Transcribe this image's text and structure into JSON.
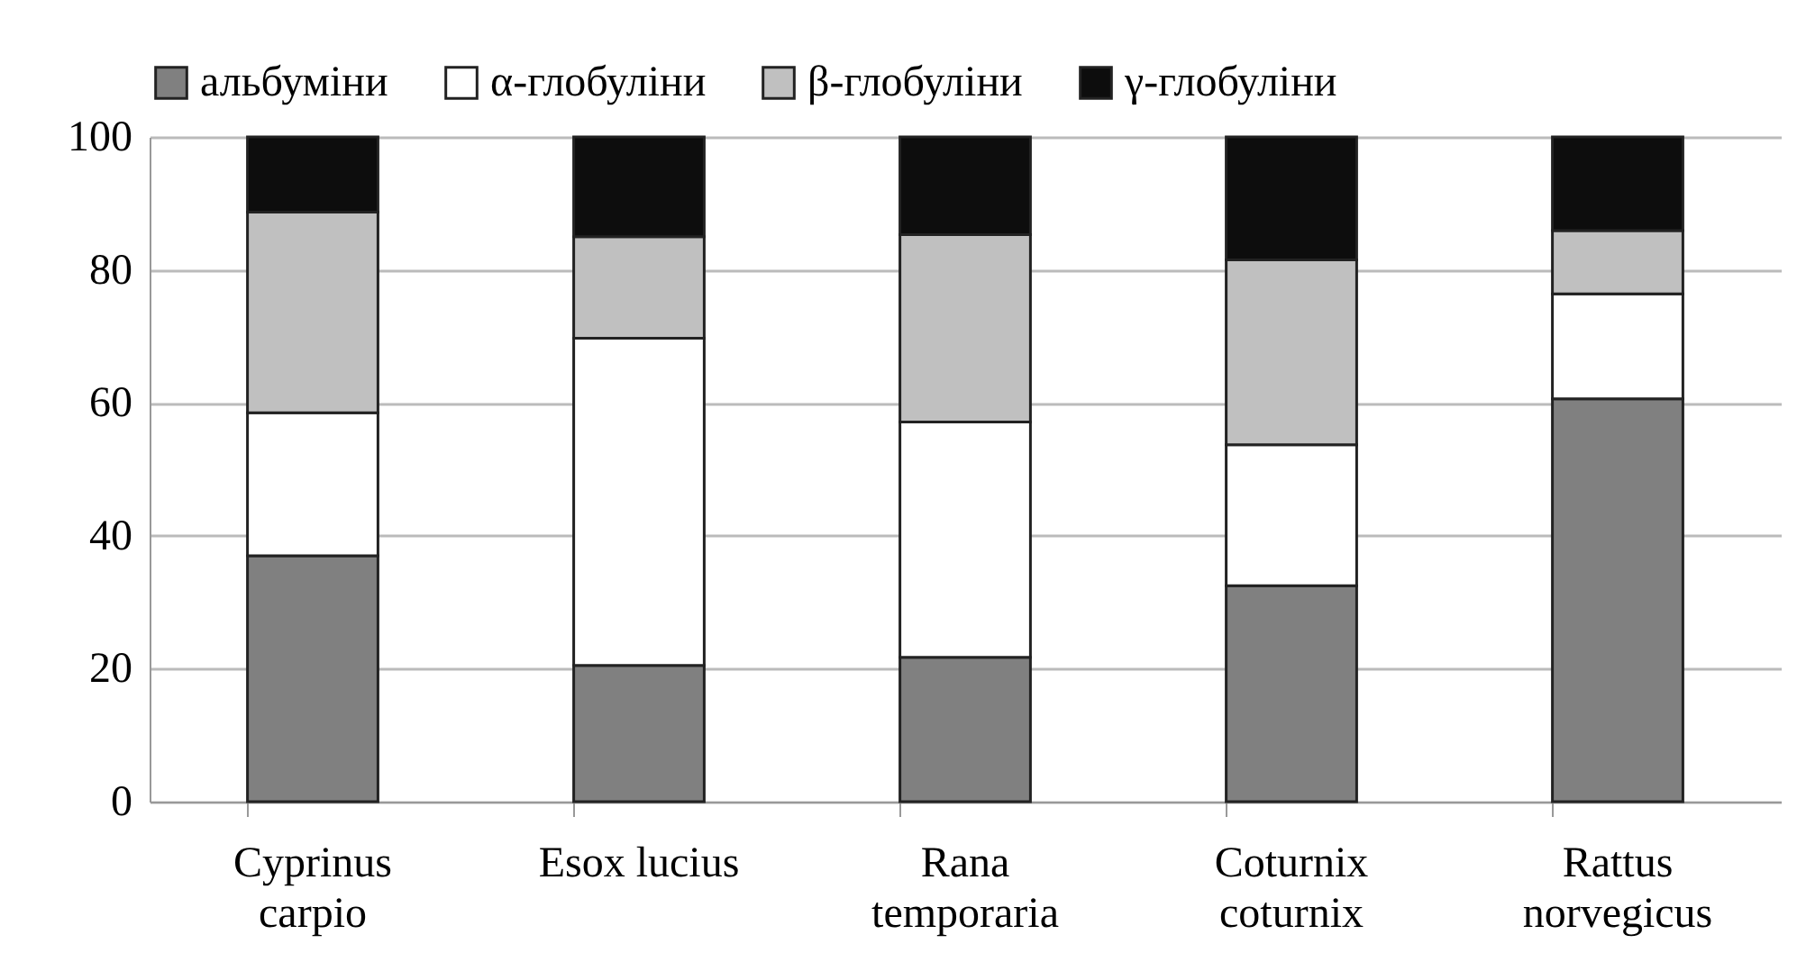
{
  "chart_data": {
    "type": "bar",
    "stacked": true,
    "categories": [
      "Cyprinus\ncarpio",
      "Esox lucius",
      "Rana\ntemporaria",
      "Coturnix\ncoturnix",
      "Rattus\nnorvegicus"
    ],
    "series": [
      {
        "name": "альбуміни",
        "color": "#808080",
        "values": [
          37.0,
          20.5,
          21.7,
          32.5,
          60.6
        ]
      },
      {
        "name": "α-глобуліни",
        "color": "#ffffff",
        "values": [
          21.5,
          49.2,
          35.4,
          21.2,
          15.8
        ]
      },
      {
        "name": "β-глобуліни",
        "color": "#c0c0c0",
        "values": [
          30.2,
          15.3,
          28.2,
          27.8,
          9.5
        ]
      },
      {
        "name": "γ-глобуліни",
        "color": "#0d0d0d",
        "values": [
          11.3,
          15.0,
          14.7,
          18.5,
          14.1
        ]
      }
    ],
    "ylim": [
      0,
      100
    ],
    "yticks": [
      0,
      20,
      40,
      60,
      80,
      100
    ],
    "grid": "y",
    "legend": "top"
  }
}
